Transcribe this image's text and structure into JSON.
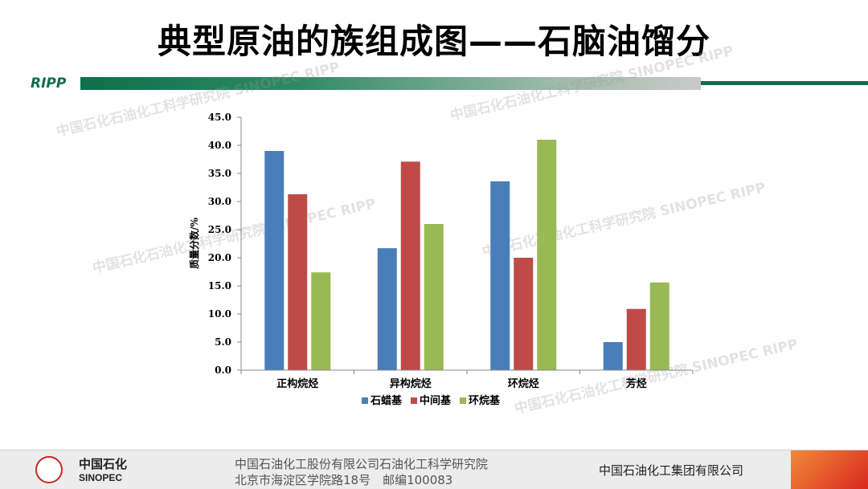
{
  "slide": {
    "title": "典型原油的族组成图——石脑油馏分",
    "brand": "RIPP"
  },
  "watermarks": [
    "中国石化石油化工科学研究院 SINOPEC RIPP",
    "中国石化石油化工科学研究院 SINOPEC RIPP",
    "中国石化石油化工科学研究院 SINOPEC RIPP",
    "中国石化石油化工科学研究院 SINOPEC RIPP",
    "中国石化石油化工科学研究院 SINOPEC RIPP"
  ],
  "chart_data": {
    "type": "bar",
    "categories": [
      "正构烷烃",
      "异构烷烃",
      "环烷烃",
      "芳烃"
    ],
    "series": [
      {
        "name": "石蜡基",
        "color": "#4a7ebb",
        "values": [
          39.0,
          21.7,
          33.6,
          5.0
        ]
      },
      {
        "name": "中间基",
        "color": "#be4b48",
        "values": [
          31.3,
          37.1,
          20.0,
          10.9
        ]
      },
      {
        "name": "环烷基",
        "color": "#98b954",
        "values": [
          17.4,
          26.0,
          41.0,
          15.6
        ]
      }
    ],
    "ylabel": "质量分数/%",
    "ylim": [
      0,
      45
    ],
    "ytick_step": 5,
    "yticks": [
      "0.0",
      "5.0",
      "10.0",
      "15.0",
      "20.0",
      "25.0",
      "30.0",
      "35.0",
      "40.0",
      "45.0"
    ],
    "grid": false,
    "legend_position": "bottom"
  },
  "footer": {
    "logo_cn": "中国石化",
    "logo_en": "SINOPEC",
    "address_line1": "中国石油化工股份有限公司石油化工科学研究院",
    "address_line2": "北京市海淀区学院路18号　邮编100083",
    "group_name": "中国石油化工集团有限公司"
  }
}
